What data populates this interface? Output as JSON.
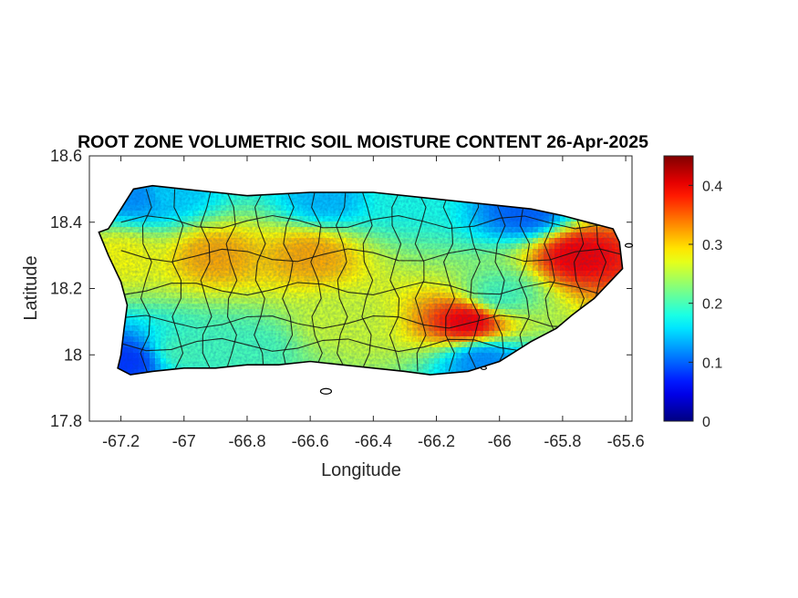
{
  "figure": {
    "title": "ROOT ZONE VOLUMETRIC SOIL MOISTURE CONTENT 26-Apr-2025",
    "xlabel": "Longitude",
    "ylabel": "Latitude"
  },
  "chart_data": {
    "type": "heatmap",
    "title": "ROOT ZONE VOLUMETRIC SOIL MOISTURE CONTENT 26-Apr-2025",
    "xlabel": "Longitude",
    "ylabel": "Latitude",
    "xlim": [
      -67.3,
      -65.58
    ],
    "ylim": [
      17.8,
      18.6
    ],
    "x_ticks": [
      "-67.2",
      "-67",
      "-66.8",
      "-66.6",
      "-66.4",
      "-66.2",
      "-66",
      "-65.8",
      "-65.6"
    ],
    "x_tick_values": [
      -67.2,
      -67.0,
      -66.8,
      -66.6,
      -66.4,
      -66.2,
      -66.0,
      -65.8,
      -65.6
    ],
    "y_ticks": [
      "17.8",
      "18",
      "18.2",
      "18.4",
      "18.6"
    ],
    "y_tick_values": [
      17.8,
      18.0,
      18.2,
      18.4,
      18.6
    ],
    "colorbar": {
      "colormap": "jet",
      "clim": [
        0,
        0.45
      ],
      "ticks": [
        "0",
        "0.1",
        "0.2",
        "0.3",
        "0.4"
      ],
      "tick_values": [
        0,
        0.1,
        0.2,
        0.3,
        0.4
      ]
    },
    "grid": false,
    "island_outline": [
      [
        -67.27,
        18.37
      ],
      [
        -67.24,
        18.38
      ],
      [
        -67.2,
        18.44
      ],
      [
        -67.16,
        18.5
      ],
      [
        -67.1,
        18.51
      ],
      [
        -67.0,
        18.5
      ],
      [
        -66.9,
        18.49
      ],
      [
        -66.8,
        18.48
      ],
      [
        -66.6,
        18.49
      ],
      [
        -66.4,
        18.49
      ],
      [
        -66.2,
        18.47
      ],
      [
        -66.0,
        18.45
      ],
      [
        -65.9,
        18.44
      ],
      [
        -65.8,
        18.42
      ],
      [
        -65.72,
        18.4
      ],
      [
        -65.64,
        18.38
      ],
      [
        -65.62,
        18.34
      ],
      [
        -65.61,
        18.26
      ],
      [
        -65.65,
        18.22
      ],
      [
        -65.7,
        18.17
      ],
      [
        -65.77,
        18.12
      ],
      [
        -65.82,
        18.08
      ],
      [
        -65.9,
        18.04
      ],
      [
        -66.0,
        17.98
      ],
      [
        -66.1,
        17.95
      ],
      [
        -66.22,
        17.94
      ],
      [
        -66.3,
        17.95
      ],
      [
        -66.4,
        17.96
      ],
      [
        -66.5,
        17.97
      ],
      [
        -66.6,
        17.98
      ],
      [
        -66.7,
        17.97
      ],
      [
        -66.8,
        17.97
      ],
      [
        -66.9,
        17.96
      ],
      [
        -67.0,
        17.96
      ],
      [
        -67.1,
        17.95
      ],
      [
        -67.17,
        17.94
      ],
      [
        -67.21,
        17.96
      ],
      [
        -67.2,
        18.0
      ],
      [
        -67.19,
        18.08
      ],
      [
        -67.18,
        18.15
      ],
      [
        -67.2,
        18.22
      ],
      [
        -67.24,
        18.3
      ]
    ],
    "field_samples": [
      {
        "lon": -67.15,
        "lat": 18.48,
        "value": 0.12
      },
      {
        "lon": -67.05,
        "lat": 18.49,
        "value": 0.15
      },
      {
        "lon": -66.55,
        "lat": 18.47,
        "value": 0.14
      },
      {
        "lon": -66.3,
        "lat": 18.47,
        "value": 0.18
      },
      {
        "lon": -65.92,
        "lat": 18.43,
        "value": 0.1
      },
      {
        "lon": -65.75,
        "lat": 18.3,
        "value": 0.4
      },
      {
        "lon": -66.0,
        "lat": 18.18,
        "value": 0.2
      },
      {
        "lon": -66.1,
        "lat": 18.1,
        "value": 0.4
      },
      {
        "lon": -66.6,
        "lat": 18.3,
        "value": 0.32
      },
      {
        "lon": -66.9,
        "lat": 18.3,
        "value": 0.32
      },
      {
        "lon": -66.5,
        "lat": 18.1,
        "value": 0.26
      },
      {
        "lon": -66.8,
        "lat": 18.02,
        "value": 0.2
      },
      {
        "lon": -67.0,
        "lat": 18.01,
        "value": 0.2
      },
      {
        "lon": -67.18,
        "lat": 17.98,
        "value": 0.08
      },
      {
        "lon": -66.05,
        "lat": 17.98,
        "value": 0.12
      },
      {
        "lon": -67.2,
        "lat": 18.3,
        "value": 0.28
      }
    ]
  }
}
